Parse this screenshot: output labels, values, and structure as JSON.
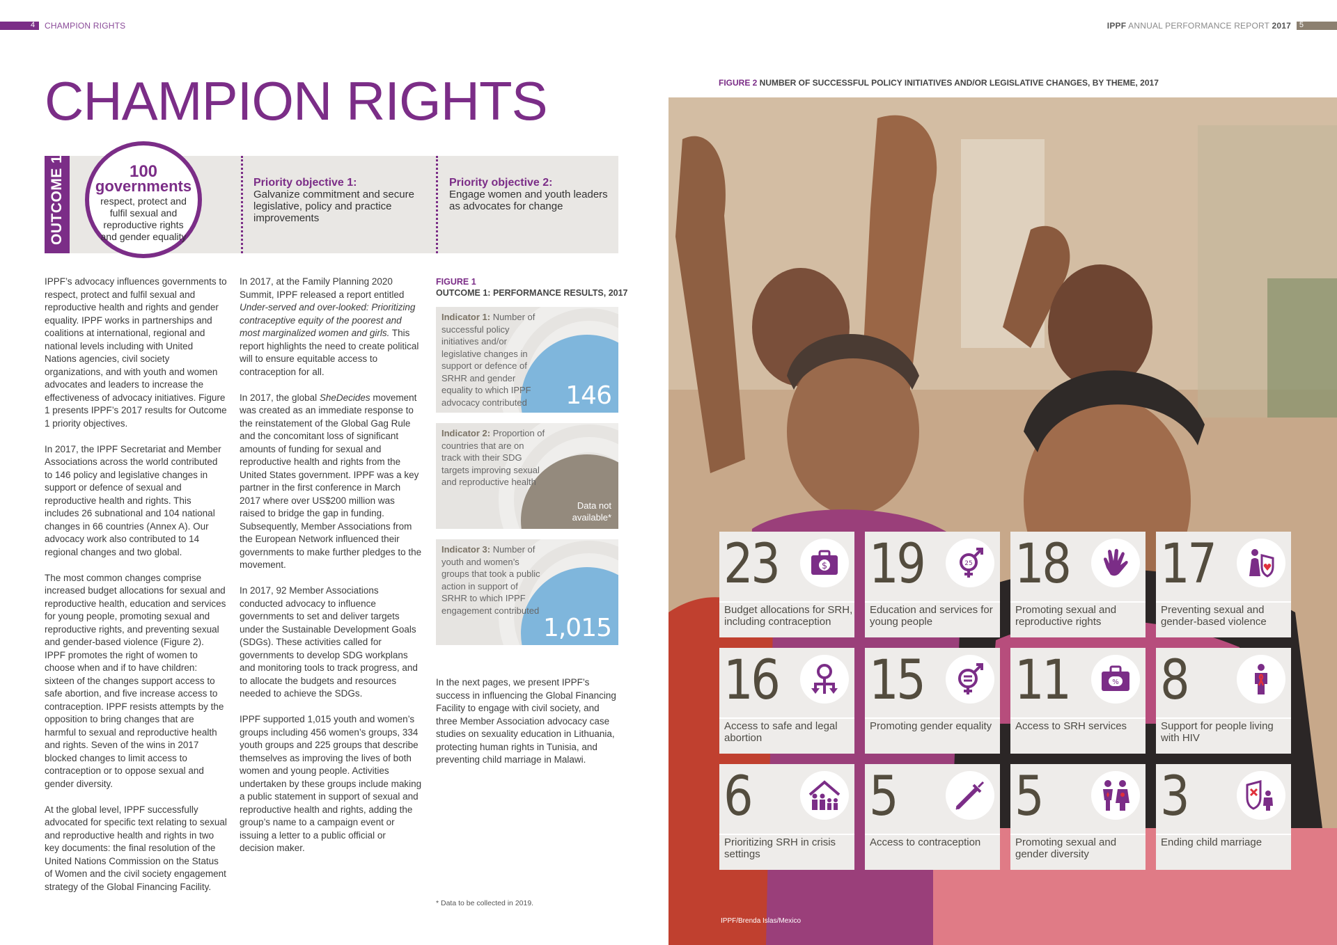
{
  "header": {
    "left_page_num": "4",
    "left_title": "CHAMPION RIGHTS",
    "right_title_prefix": "IPPF",
    "right_title_middle": " ANNUAL PERFORMANCE REPORT ",
    "right_title_year": "2017",
    "right_page_num": "5"
  },
  "page_title": "CHAMPION RIGHTS",
  "outcome": {
    "tab": "OUTCOME 1",
    "number": "100",
    "governments": "governments",
    "description": "respect, protect and fulfil sexual and reproductive rights and gender equality",
    "objectives": [
      {
        "title": "Priority objective 1:",
        "text": "Galvanize commitment and secure legislative, policy and practice improvements"
      },
      {
        "title": "Priority objective 2:",
        "text": "Engage women and youth leaders as advocates for change"
      }
    ]
  },
  "column1": [
    "IPPF’s advocacy influences governments to respect, protect and fulfil sexual and reproductive health and rights and gender equality. IPPF works in partnerships and coalitions at international, regional and national levels including with United Nations agencies, civil society organizations, and with youth and women advocates and leaders to increase the effectiveness of advocacy initiatives. Figure 1 presents IPPF’s 2017 results for Outcome 1 priority objectives.",
    "In 2017, the IPPF Secretariat and Member Associations across the world contributed to 146 policy and legislative changes in support or defence of sexual and reproductive health and rights. This includes 26 subnational and 104 national changes in 66 countries (Annex A). Our advocacy work also contributed to 14 regional changes and two global.",
    "The most common changes comprise increased budget allocations for sexual and reproductive health, education and services for young people, promoting sexual and reproductive rights, and preventing sexual and gender-based violence (Figure 2). IPPF promotes the right of women to choose when and if to have children: sixteen of the changes support access to safe abortion, and five increase access to contraception. IPPF resists attempts by the opposition to bring changes that are harmful to sexual and reproductive health and rights. Seven of the wins in 2017 blocked changes to limit access to contraception or to oppose sexual and gender diversity.",
    "At the global level, IPPF successfully advocated for specific text relating to sexual and reproductive health and rights in two key documents: the final resolution of the United Nations Commission on the Status of Women and the civil society engagement strategy of the Global Financing Facility."
  ],
  "column2": {
    "p1_before": "In 2017, at the Family Planning 2020 Summit, IPPF released a report entitled ",
    "p1_italic": "Under-served and over-looked: Prioritizing contraceptive equity of the poorest and most marginalized women and girls.",
    "p1_after": " This report highlights the need to create political will to ensure equitable access to contraception for all.",
    "p2_before": "In 2017, the global ",
    "p2_italic": "SheDecides",
    "p2_after": " movement was created as an immediate response to the reinstatement of the Global Gag Rule and the concomitant loss of significant amounts of funding for sexual and reproductive health and rights from the United States government. IPPF was a key partner in the first conference in March 2017 where over US$200 million was raised to bridge the gap in funding. Subsequently, Member Associations from the European Network influenced their governments to make further pledges to the movement.",
    "p3": "In 2017, 92 Member Associations conducted advocacy to influence governments to set and deliver targets under the Sustainable Development Goals (SDGs). These activities called for governments to develop SDG workplans and monitoring tools to track progress, and to allocate the budgets and resources needed to achieve the SDGs.",
    "p4": "IPPF supported 1,015 youth and women’s groups including 456 women’s groups, 334 youth groups and 225 groups that describe themselves as improving the lives of both women and young people. Activities undertaken by these groups include making a public statement in support of sexual and reproductive health and rights, adding the group’s name to a campaign event or issuing a letter to a public official or decision maker."
  },
  "figure1": {
    "label": "FIGURE 1",
    "title": "OUTCOME 1: PERFORMANCE RESULTS, 2017",
    "indicators": [
      {
        "name": "Indicator 1:",
        "text": " Number of successful policy initiatives and/or legislative changes in support or defence of SRHR and gender equality to which IPPF advocacy contributed",
        "value": "146",
        "color": "#7fb6dc"
      },
      {
        "name": "Indicator 2:",
        "text": " Proportion of countries that are on track with their SDG targets improving sexual and reproductive health",
        "value": "Data not available*",
        "color": "#948a7d"
      },
      {
        "name": "Indicator 3:",
        "text": " Number of youth and women’s groups that took a public action in support of SRHR to which IPPF engagement contributed",
        "value": "1,015",
        "color": "#7fb6dc"
      }
    ],
    "after_text": "In the next pages, we present IPPF’s success in influencing the Global Financing Facility to engage with civil society, and three Member Association advocacy case studies on sexuality education in Lithuania, protecting human rights in Tunisia, and preventing child marriage in Malawi.",
    "footnote": "*  Data to be collected in 2019."
  },
  "figure2": {
    "label": "FIGURE 2",
    "title": " NUMBER OF SUCCESSFUL POLICY INITIATIVES AND/OR LEGISLATIVE CHANGES, BY THEME, 2017",
    "photo_credit": "IPPF/Brenda Islas/Mexico",
    "accent": "#7b2d87",
    "tiles": [
      {
        "value": "23",
        "label": "Budget allocations for SRH, including contraception",
        "icon": "money-bag-icon"
      },
      {
        "value": "19",
        "label": "Education and services for young people",
        "icon": "youth-gender-icon"
      },
      {
        "value": "18",
        "label": "Promoting sexual and reproductive rights",
        "icon": "raised-hand-icon"
      },
      {
        "value": "17",
        "label": "Preventing sexual and gender-based violence",
        "icon": "woman-shield-icon"
      },
      {
        "value": "16",
        "label": "Access to safe and legal abortion",
        "icon": "choice-arrows-icon"
      },
      {
        "value": "15",
        "label": "Promoting gender equality",
        "icon": "gender-equality-icon"
      },
      {
        "value": "11",
        "label": "Access to SRH services",
        "icon": "medical-kit-icon"
      },
      {
        "value": "8",
        "label": "Support for people living with HIV",
        "icon": "person-ribbon-icon"
      },
      {
        "value": "6",
        "label": "Prioritizing SRH in crisis settings",
        "icon": "family-shelter-icon"
      },
      {
        "value": "5",
        "label": "Access to contraception",
        "icon": "contraceptive-device-icon"
      },
      {
        "value": "5",
        "label": "Promoting sexual and gender diversity",
        "icon": "diverse-people-icon"
      },
      {
        "value": "3",
        "label": "Ending child marriage",
        "icon": "child-protection-icon"
      }
    ]
  }
}
